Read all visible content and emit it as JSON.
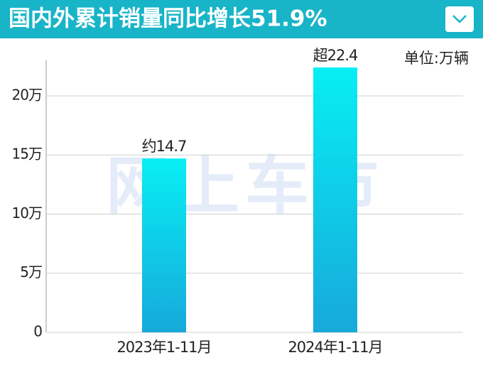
{
  "chart_data": {
    "type": "bar",
    "title": "国内外累计销量同比增长51.9%",
    "unit_label": "单位:万辆",
    "watermark": "网上车市",
    "categories": [
      "2023年1-11月",
      "2024年1-11月"
    ],
    "values": [
      14.7,
      22.4
    ],
    "value_labels": [
      "约14.7",
      "超22.4"
    ],
    "gradient": [
      "#08eef4",
      "#17a9da"
    ],
    "ylim": [
      0,
      23
    ],
    "yticks": [
      0,
      {
        "value": 5,
        "label": "5万"
      },
      {
        "value": 10,
        "label": "10万"
      },
      {
        "value": 15,
        "label": "15万"
      },
      {
        "value": 20,
        "label": "20万"
      }
    ],
    "grid": true
  }
}
